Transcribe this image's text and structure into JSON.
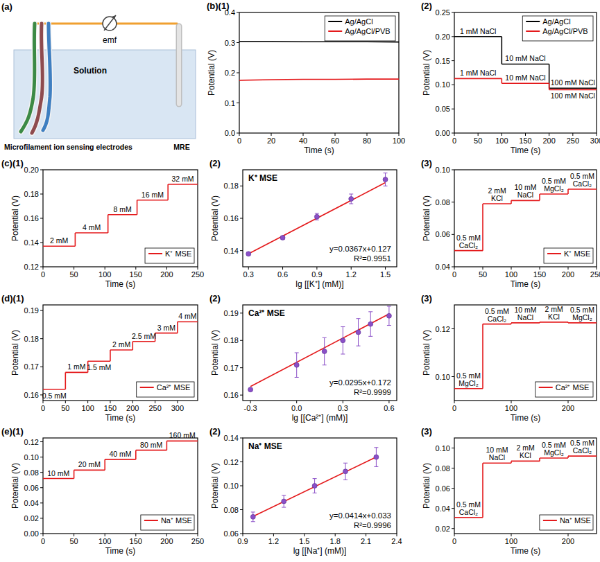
{
  "diagram": {
    "title": "(a)",
    "meter_label": "emf",
    "solution_label": "Solution",
    "electrodes_label": "Microfilament ion sensing electrodes",
    "reference_label": "MRE"
  },
  "chart_data": [
    {
      "type": "line",
      "title": "(b)(1)",
      "xlabel": "Time (s)",
      "ylabel": "Potential (V)",
      "legend": "upper right",
      "x": [
        0,
        20,
        40,
        60,
        80,
        100
      ],
      "series": [
        {
          "name": "Ag/AgCl",
          "color": "#000000",
          "values": [
            0.304,
            0.304,
            0.303,
            0.303,
            0.303,
            0.302
          ]
        },
        {
          "name": "Ag/AgCl/PVB",
          "color": "#e41a1c",
          "values": [
            0.175,
            0.177,
            0.178,
            0.178,
            0.179,
            0.179
          ]
        }
      ],
      "xlim": [
        0,
        100
      ],
      "xticks": [
        0,
        20,
        40,
        60,
        80,
        100
      ],
      "ylim": [
        0,
        0.4
      ],
      "yticks": [
        {
          "value": 0,
          "label": "0.0"
        },
        0.1,
        0.2,
        0.3,
        0.4
      ]
    },
    {
      "type": "step",
      "title": "(2)",
      "xlabel": "Time (s)",
      "ylabel": "Potential (V)",
      "legend": "upper right",
      "x_edges": [
        0,
        100,
        200,
        300
      ],
      "series": [
        {
          "name": "Ag/AgCl",
          "color": "#000000",
          "values": [
            0.2,
            0.143,
            0.093
          ],
          "labels": [
            "1 mM NaCl",
            "10 mM NaCl",
            "100 mM NaCl"
          ]
        },
        {
          "name": "Ag/AgCl/PVB",
          "color": "#e41a1c",
          "values": [
            0.113,
            0.103,
            0.09
          ],
          "labels": [
            "1 mM NaCl",
            "10 mM NaCl",
            "100 mM NaCl"
          ]
        }
      ],
      "xlim": [
        0,
        300
      ],
      "xticks": [
        0,
        50,
        100,
        150,
        200,
        250,
        300
      ],
      "ylim": [
        0,
        0.25
      ],
      "yticks": [
        {
          "value": 0,
          "label": "0.00"
        },
        0.05,
        {
          "value": 0.1,
          "label": "0.10"
        },
        0.15,
        {
          "value": 0.2,
          "label": "0.20"
        },
        0.25
      ]
    },
    {
      "type": "step",
      "title": "(c)(1)",
      "xlabel": "Time (s)",
      "ylabel": "Potential (V)",
      "legend": "lower right",
      "x_edges": [
        0,
        52,
        105,
        152,
        202,
        250
      ],
      "series": [
        {
          "name": "K⁺ MSE",
          "color": "#e41a1c",
          "values": [
            0.137,
            0.148,
            0.163,
            0.175,
            0.188
          ],
          "labels": [
            "2 mM",
            "4 mM",
            "8 mM",
            "16 mM",
            "32 mM"
          ]
        }
      ],
      "xlim": [
        0,
        250
      ],
      "xticks": [
        0,
        50,
        100,
        150,
        200,
        250
      ],
      "ylim": [
        0.12,
        0.2
      ],
      "yticks": [
        0.12,
        0.14,
        0.16,
        0.18,
        {
          "value": 0.2,
          "label": "0.20"
        }
      ]
    },
    {
      "type": "scatter",
      "title": "(2)",
      "xlabel": "lg [[K⁺] (mM)]",
      "ylabel": "Potential (V)",
      "annotations": [
        "K⁺ MSE",
        "y=0.0367x+0.127",
        "R²=0.9951"
      ],
      "x": [
        0.3,
        0.6,
        0.9,
        1.2,
        1.5
      ],
      "series": [
        {
          "color": "#8a4fc7",
          "values": [
            0.138,
            0.148,
            0.161,
            0.172,
            0.184
          ],
          "errors": [
            0.001,
            0.001,
            0.002,
            0.003,
            0.004
          ]
        }
      ],
      "fit": {
        "slope": 0.0367,
        "intercept": 0.127,
        "color": "#e41a1c"
      },
      "xlim": [
        0.25,
        1.6
      ],
      "xticks": [
        0.3,
        0.6,
        0.9,
        1.2,
        1.5
      ],
      "ylim": [
        0.13,
        0.19
      ],
      "yticks": [
        0.14,
        0.16,
        0.18
      ]
    },
    {
      "type": "step",
      "title": "(3)",
      "xlabel": "Time (s)",
      "ylabel": "Potential (V)",
      "legend": "lower right",
      "x_edges": [
        0,
        50,
        100,
        150,
        200,
        250
      ],
      "series": [
        {
          "name": "K⁺ MSE",
          "color": "#e41a1c",
          "values": [
            0.05,
            0.079,
            0.081,
            0.085,
            0.088
          ],
          "labels": [
            "0.5 mM CaCl₂",
            "2 mM KCl",
            "10 mM NaCl",
            "0.5 mM MgCl₂",
            "0.5 mM CaCl₂"
          ]
        }
      ],
      "xlim": [
        0,
        250
      ],
      "xticks": [
        0,
        50,
        100,
        150,
        200,
        250
      ],
      "ylim": [
        0.04,
        0.1
      ],
      "yticks": [
        0.04,
        0.06,
        0.08,
        {
          "value": 0.1,
          "label": "0.10"
        }
      ]
    },
    {
      "type": "step",
      "title": "(d)(1)",
      "xlabel": "Time (s)",
      "ylabel": "Potential (V)",
      "legend": "lower right",
      "x_edges": [
        0,
        50,
        100,
        150,
        200,
        250,
        300,
        345
      ],
      "series": [
        {
          "name": "Ca²⁺ MSE",
          "color": "#e41a1c",
          "values": [
            0.162,
            0.168,
            0.172,
            0.176,
            0.179,
            0.182,
            0.186
          ],
          "labels": [
            "0.5 mM",
            "1 mM",
            "1.5 mM",
            "2 mM",
            "2.5 mM",
            "3 mM",
            "4 mM"
          ]
        }
      ],
      "xlim": [
        0,
        345
      ],
      "xticks": [
        0,
        50,
        100,
        150,
        200,
        250,
        300
      ],
      "ylim": [
        0.158,
        0.192
      ],
      "yticks": [
        0.16,
        0.17,
        0.18,
        0.19
      ]
    },
    {
      "type": "scatter",
      "title": "(2)",
      "xlabel": "lg [[Ca²⁺] (mM)]",
      "ylabel": "Potential (V)",
      "annotations": [
        "Ca²⁺ MSE",
        "y=0.0295x+0.172",
        "R²=0.9999"
      ],
      "x": [
        -0.3,
        0,
        0.18,
        0.3,
        0.4,
        0.48,
        0.6
      ],
      "series": [
        {
          "color": "#8a4fc7",
          "values": [
            0.162,
            0.171,
            0.176,
            0.18,
            0.183,
            0.186,
            0.189
          ],
          "errors": [
            0.0005,
            0.0045,
            0.005,
            0.005,
            0.005,
            0.0045,
            0.0035
          ]
        }
      ],
      "fit": {
        "slope": 0.0295,
        "intercept": 0.172,
        "color": "#e41a1c"
      },
      "xlim": [
        -0.35,
        0.65
      ],
      "xticks": [
        -0.3,
        {
          "value": 0,
          "label": "0.0"
        },
        0.3,
        0.6
      ],
      "ylim": [
        0.158,
        0.193
      ],
      "yticks": [
        0.16,
        0.17,
        0.18,
        0.19
      ]
    },
    {
      "type": "step",
      "title": "(3)",
      "xlabel": "Time (s)",
      "ylabel": "Potential (V)",
      "legend": "lower right",
      "x_edges": [
        0,
        50,
        100,
        150,
        200,
        250
      ],
      "series": [
        {
          "name": "Ca²⁺ MSE",
          "color": "#e41a1c",
          "values": [
            0.095,
            0.122,
            0.1225,
            0.1228,
            0.1225
          ],
          "labels": [
            "0.5 mM MgCl₂",
            "0.5 mM CaCl₂",
            "10 mM NaCl",
            "2 mM KCl",
            "0.5 mM MgCl₂"
          ]
        }
      ],
      "xlim": [
        0,
        250
      ],
      "xticks": [
        0,
        100,
        200
      ],
      "ylim": [
        0.09,
        0.13
      ],
      "yticks": [
        {
          "value": 0.1,
          "label": "0.10"
        },
        0.12
      ]
    },
    {
      "type": "step",
      "title": "(e)(1)",
      "xlabel": "Time (s)",
      "ylabel": "Potential (V)",
      "legend": "lower right",
      "x_edges": [
        0,
        50,
        100,
        150,
        200,
        250
      ],
      "series": [
        {
          "name": "Na⁺ MSE",
          "color": "#e41a1c",
          "values": [
            0.072,
            0.083,
            0.097,
            0.109,
            0.121
          ],
          "labels": [
            "10 mM",
            "20 mM",
            "40 mM",
            "80 mM",
            "160 mM"
          ]
        }
      ],
      "xlim": [
        0,
        250
      ],
      "xticks": [
        0,
        50,
        100,
        150,
        200,
        250
      ],
      "ylim": [
        0,
        0.125
      ],
      "yticks": [
        {
          "value": 0,
          "label": "0.00"
        },
        0.02,
        0.04,
        0.06,
        0.08,
        {
          "value": 0.1,
          "label": "0.10"
        },
        0.12
      ]
    },
    {
      "type": "scatter",
      "title": "(2)",
      "xlabel": "lg [[Na⁺] (mM)]",
      "ylabel": "Potential (V)",
      "annotations": [
        "Na⁺ MSE",
        "y=0.0414x+0.033",
        "R²=0.9996"
      ],
      "x": [
        1,
        1.3,
        1.6,
        1.9,
        2.2
      ],
      "series": [
        {
          "color": "#8a4fc7",
          "values": [
            0.074,
            0.087,
            0.1,
            0.112,
            0.124
          ],
          "errors": [
            0.004,
            0.005,
            0.006,
            0.007,
            0.008
          ]
        }
      ],
      "fit": {
        "slope": 0.0414,
        "intercept": 0.033,
        "color": "#e41a1c"
      },
      "xlim": [
        0.9,
        2.4
      ],
      "xticks": [
        1.2,
        1.5,
        1.8,
        2.1,
        2.4,
        0.9
      ],
      "ylim": [
        0.06,
        0.14
      ],
      "yticks": [
        0.06,
        0.08,
        {
          "value": 0.1,
          "label": "0.10"
        },
        0.12,
        0.14
      ]
    },
    {
      "type": "step",
      "title": "(3)",
      "xlabel": "Time (s)",
      "ylabel": "Potential (V)",
      "legend": "lower right",
      "x_edges": [
        0,
        50,
        100,
        150,
        200,
        250
      ],
      "series": [
        {
          "name": "Na⁺ MSE",
          "color": "#e41a1c",
          "values": [
            0.031,
            0.085,
            0.087,
            0.09,
            0.092
          ],
          "labels": [
            "0.5 mM CaCl₂",
            "10 mM NaCl",
            "2 mM KCl",
            "0.5 mM MgCl₂",
            "0.5 mM CaCl₂"
          ]
        }
      ],
      "xlim": [
        0,
        250
      ],
      "xticks": [
        0,
        100,
        200
      ],
      "ylim": [
        0.015,
        0.11
      ],
      "yticks": [
        0.02,
        0.04,
        0.06,
        0.08,
        {
          "value": 0.1,
          "label": "0.10"
        }
      ]
    }
  ]
}
